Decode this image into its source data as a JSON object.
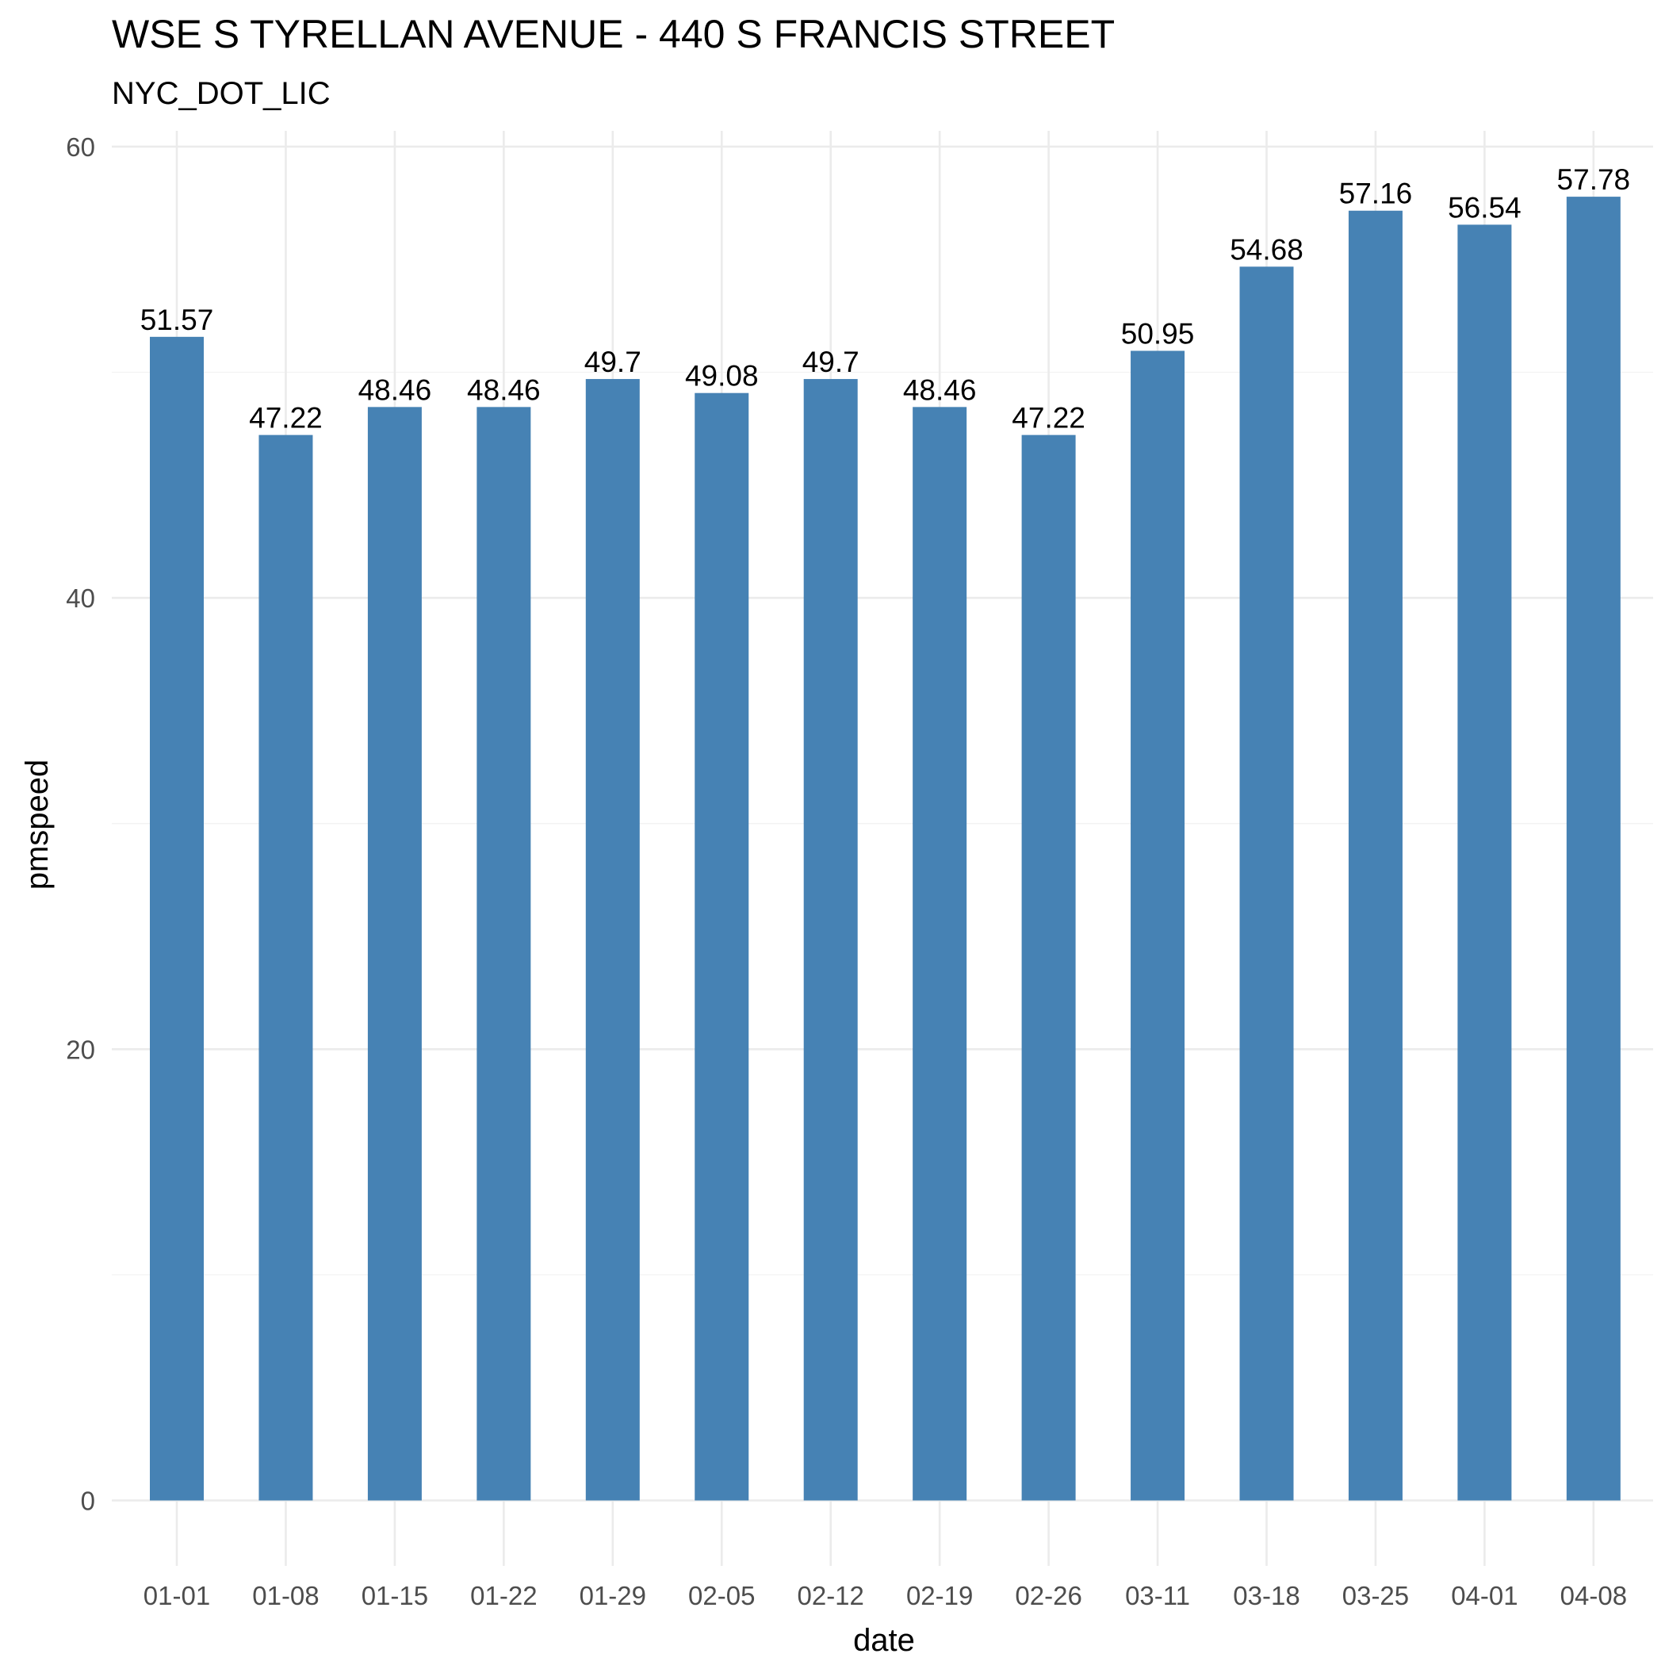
{
  "chart_data": {
    "type": "bar",
    "title": "WSE S TYRELLAN AVENUE - 440 S FRANCIS STREET",
    "subtitle": "NYC_DOT_LIC",
    "xlabel": "date",
    "ylabel": "pmspeed",
    "categories": [
      "01-01",
      "01-08",
      "01-15",
      "01-22",
      "01-29",
      "02-05",
      "02-12",
      "02-19",
      "02-26",
      "03-11",
      "03-18",
      "03-25",
      "04-01",
      "04-08"
    ],
    "values": [
      51.57,
      47.22,
      48.46,
      48.46,
      49.7,
      49.08,
      49.7,
      48.46,
      47.22,
      50.95,
      54.68,
      57.16,
      56.54,
      57.78
    ],
    "data_labels": [
      "51.57",
      "47.22",
      "48.46",
      "48.46",
      "49.7",
      "49.08",
      "49.7",
      "48.46",
      "47.22",
      "50.95",
      "54.68",
      "57.16",
      "56.54",
      "57.78"
    ],
    "yticks": [
      0,
      20,
      40,
      60
    ],
    "ytick_labels": [
      "0",
      "20",
      "40",
      "60"
    ],
    "ylim": [
      -2.9,
      60.7
    ],
    "grid": true,
    "legend": "none",
    "bar_color": "#4682B4"
  }
}
